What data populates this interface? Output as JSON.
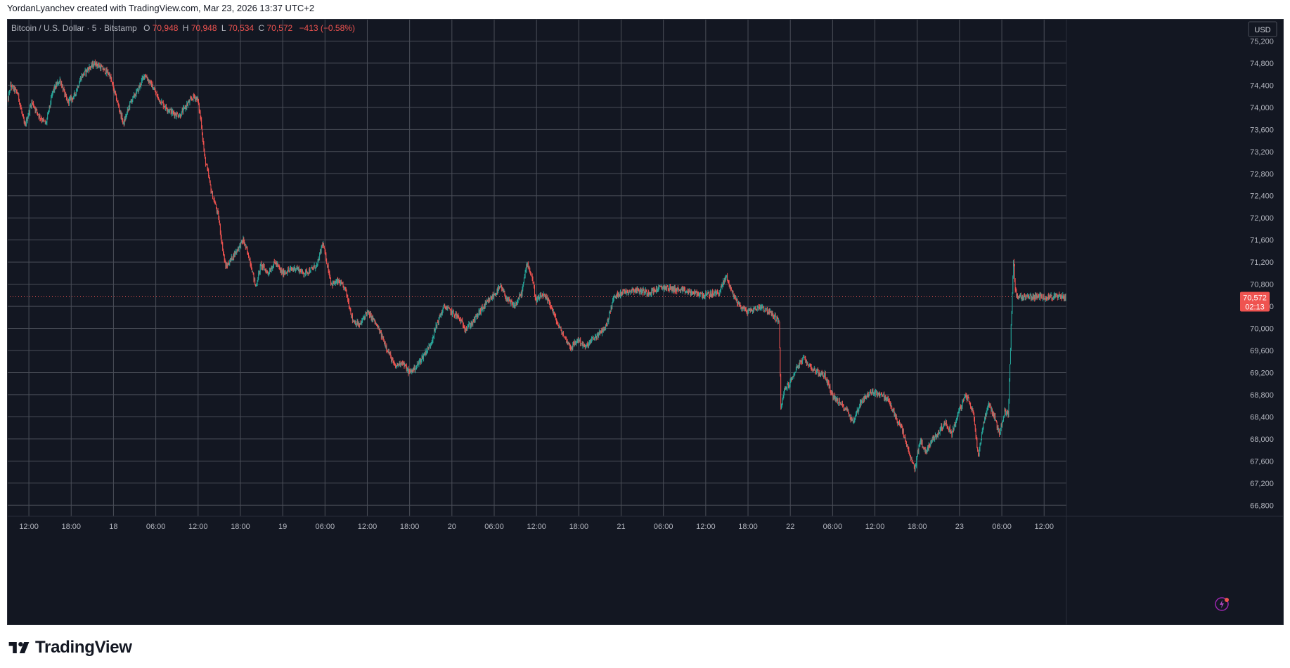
{
  "header": {
    "attribution": "YordanLyanchev created with TradingView.com, Mar 23, 2026 13:37 UTC+2"
  },
  "brand": {
    "name": "TradingView"
  },
  "legend": {
    "symbol": "Bitcoin / U.S. Dollar · 5 · Bitstamp",
    "o_label": "O",
    "o_value": "70,948",
    "h_label": "H",
    "h_value": "70,948",
    "l_label": "L",
    "l_value": "70,534",
    "c_label": "C",
    "c_value": "70,572",
    "change": "−413 (−0.58%)"
  },
  "currency_button": "USD",
  "price_tag": {
    "price": "70,572",
    "countdown": "02:13"
  },
  "colors": {
    "background": "#131722",
    "grid": "#4a4e58",
    "text": "#b2b5be",
    "up": "#26a69a",
    "down": "#ef5350",
    "price_line": "#ef5350"
  },
  "chart_data": {
    "type": "candlestick",
    "title": "Bitcoin / U.S. Dollar · 5 · Bitstamp",
    "ylim": [
      66600,
      75600
    ],
    "y_ticks": [
      66800,
      67200,
      67600,
      68000,
      68400,
      68800,
      69200,
      69600,
      70000,
      70400,
      70800,
      71200,
      71600,
      72000,
      72400,
      72800,
      73200,
      73600,
      74000,
      74400,
      74800,
      75200
    ],
    "y_tick_labels": [
      "66,800",
      "67,200",
      "67,600",
      "68,000",
      "68,400",
      "68,800",
      "69,200",
      "69,600",
      "70,000",
      "70,400",
      "70,800",
      "71,200",
      "71,600",
      "72,000",
      "72,400",
      "72,800",
      "73,200",
      "73,600",
      "74,000",
      "74,400",
      "74,800",
      "75,200"
    ],
    "x_range": [
      "Mar 17 08:54",
      "Mar 23 15:10"
    ],
    "x_ticks": [
      "12:00",
      "18:00",
      "18",
      "06:00",
      "12:00",
      "18:00",
      "19",
      "06:00",
      "12:00",
      "18:00",
      "20",
      "06:00",
      "12:00",
      "18:00",
      "21",
      "06:00",
      "12:00",
      "18:00",
      "22",
      "06:00",
      "12:00",
      "18:00",
      "23",
      "06:00",
      "12:00"
    ],
    "x_tick_hours": [
      12,
      18,
      24,
      30,
      36,
      42,
      48,
      54,
      60,
      66,
      72,
      78,
      84,
      90,
      96,
      102,
      108,
      114,
      120,
      126,
      132,
      138,
      144,
      150,
      156
    ],
    "grid": true,
    "last_price": 70572,
    "price_path": [
      {
        "t": "Mar 17 08:54",
        "p": 74000
      },
      {
        "t": "Mar 17 09:30",
        "p": 74400
      },
      {
        "t": "Mar 17 10:30",
        "p": 74250
      },
      {
        "t": "Mar 17 11:30",
        "p": 73650
      },
      {
        "t": "Mar 17 12:30",
        "p": 74100
      },
      {
        "t": "Mar 17 13:30",
        "p": 73850
      },
      {
        "t": "Mar 17 14:30",
        "p": 73700
      },
      {
        "t": "Mar 17 15:30",
        "p": 74300
      },
      {
        "t": "Mar 17 16:30",
        "p": 74500
      },
      {
        "t": "Mar 17 17:30",
        "p": 74100
      },
      {
        "t": "Mar 17 18:30",
        "p": 74200
      },
      {
        "t": "Mar 17 19:30",
        "p": 74550
      },
      {
        "t": "Mar 17 20:30",
        "p": 74700
      },
      {
        "t": "Mar 17 21:30",
        "p": 74800
      },
      {
        "t": "Mar 17 22:30",
        "p": 74700
      },
      {
        "t": "Mar 17 23:30",
        "p": 74600
      },
      {
        "t": "Mar 18 00:30",
        "p": 74150
      },
      {
        "t": "Mar 18 01:30",
        "p": 73700
      },
      {
        "t": "Mar 18 02:30",
        "p": 74100
      },
      {
        "t": "Mar 18 03:30",
        "p": 74300
      },
      {
        "t": "Mar 18 04:30",
        "p": 74600
      },
      {
        "t": "Mar 18 05:30",
        "p": 74400
      },
      {
        "t": "Mar 18 06:30",
        "p": 74150
      },
      {
        "t": "Mar 18 07:30",
        "p": 74000
      },
      {
        "t": "Mar 18 08:30",
        "p": 73900
      },
      {
        "t": "Mar 18 09:30",
        "p": 73850
      },
      {
        "t": "Mar 18 10:30",
        "p": 74050
      },
      {
        "t": "Mar 18 11:30",
        "p": 74200
      },
      {
        "t": "Mar 18 12:00",
        "p": 74150
      },
      {
        "t": "Mar 18 12:30",
        "p": 73750
      },
      {
        "t": "Mar 18 13:00",
        "p": 73100
      },
      {
        "t": "Mar 18 13:30",
        "p": 72800
      },
      {
        "t": "Mar 18 14:00",
        "p": 72450
      },
      {
        "t": "Mar 18 14:30",
        "p": 72250
      },
      {
        "t": "Mar 18 15:00",
        "p": 72000
      },
      {
        "t": "Mar 18 15:30",
        "p": 71500
      },
      {
        "t": "Mar 18 16:00",
        "p": 71100
      },
      {
        "t": "Mar 18 16:45",
        "p": 71250
      },
      {
        "t": "Mar 18 17:30",
        "p": 71400
      },
      {
        "t": "Mar 18 18:30",
        "p": 71600
      },
      {
        "t": "Mar 18 19:30",
        "p": 71200
      },
      {
        "t": "Mar 18 20:15",
        "p": 70750
      },
      {
        "t": "Mar 18 21:00",
        "p": 71150
      },
      {
        "t": "Mar 18 22:00",
        "p": 71000
      },
      {
        "t": "Mar 18 23:00",
        "p": 71200
      },
      {
        "t": "Mar 19 00:00",
        "p": 71000
      },
      {
        "t": "Mar 19 01:00",
        "p": 71050
      },
      {
        "t": "Mar 19 02:00",
        "p": 71100
      },
      {
        "t": "Mar 19 03:00",
        "p": 71000
      },
      {
        "t": "Mar 19 04:00",
        "p": 71050
      },
      {
        "t": "Mar 19 05:00",
        "p": 71150
      },
      {
        "t": "Mar 19 05:45",
        "p": 71550
      },
      {
        "t": "Mar 19 06:30",
        "p": 71100
      },
      {
        "t": "Mar 19 07:00",
        "p": 70800
      },
      {
        "t": "Mar 19 08:00",
        "p": 70850
      },
      {
        "t": "Mar 19 09:00",
        "p": 70700
      },
      {
        "t": "Mar 19 10:00",
        "p": 70150
      },
      {
        "t": "Mar 19 11:00",
        "p": 70050
      },
      {
        "t": "Mar 19 12:00",
        "p": 70300
      },
      {
        "t": "Mar 19 13:00",
        "p": 70150
      },
      {
        "t": "Mar 19 14:00",
        "p": 69900
      },
      {
        "t": "Mar 19 15:00",
        "p": 69600
      },
      {
        "t": "Mar 19 16:00",
        "p": 69300
      },
      {
        "t": "Mar 19 17:00",
        "p": 69400
      },
      {
        "t": "Mar 19 18:00",
        "p": 69200
      },
      {
        "t": "Mar 19 19:00",
        "p": 69300
      },
      {
        "t": "Mar 19 20:00",
        "p": 69500
      },
      {
        "t": "Mar 19 21:00",
        "p": 69700
      },
      {
        "t": "Mar 19 22:00",
        "p": 70100
      },
      {
        "t": "Mar 19 23:00",
        "p": 70400
      },
      {
        "t": "Mar 20 00:00",
        "p": 70300
      },
      {
        "t": "Mar 20 01:00",
        "p": 70200
      },
      {
        "t": "Mar 20 02:00",
        "p": 70000
      },
      {
        "t": "Mar 20 03:00",
        "p": 70100
      },
      {
        "t": "Mar 20 04:00",
        "p": 70300
      },
      {
        "t": "Mar 20 05:00",
        "p": 70450
      },
      {
        "t": "Mar 20 06:00",
        "p": 70600
      },
      {
        "t": "Mar 20 07:00",
        "p": 70750
      },
      {
        "t": "Mar 20 08:00",
        "p": 70500
      },
      {
        "t": "Mar 20 09:00",
        "p": 70400
      },
      {
        "t": "Mar 20 10:00",
        "p": 70650
      },
      {
        "t": "Mar 20 10:45",
        "p": 71200
      },
      {
        "t": "Mar 20 11:30",
        "p": 70900
      },
      {
        "t": "Mar 20 12:00",
        "p": 70500
      },
      {
        "t": "Mar 20 13:00",
        "p": 70600
      },
      {
        "t": "Mar 20 14:00",
        "p": 70450
      },
      {
        "t": "Mar 20 15:00",
        "p": 70100
      },
      {
        "t": "Mar 20 16:00",
        "p": 69850
      },
      {
        "t": "Mar 20 17:00",
        "p": 69650
      },
      {
        "t": "Mar 20 18:00",
        "p": 69800
      },
      {
        "t": "Mar 20 19:00",
        "p": 69650
      },
      {
        "t": "Mar 20 20:00",
        "p": 69800
      },
      {
        "t": "Mar 20 21:00",
        "p": 69900
      },
      {
        "t": "Mar 20 22:00",
        "p": 70050
      },
      {
        "t": "Mar 20 23:00",
        "p": 70550
      },
      {
        "t": "Mar 21 00:00",
        "p": 70650
      },
      {
        "t": "Mar 21 02:00",
        "p": 70700
      },
      {
        "t": "Mar 21 04:00",
        "p": 70650
      },
      {
        "t": "Mar 21 06:00",
        "p": 70750
      },
      {
        "t": "Mar 21 08:00",
        "p": 70700
      },
      {
        "t": "Mar 21 10:00",
        "p": 70650
      },
      {
        "t": "Mar 21 12:00",
        "p": 70600
      },
      {
        "t": "Mar 21 14:00",
        "p": 70650
      },
      {
        "t": "Mar 21 15:00",
        "p": 70950
      },
      {
        "t": "Mar 21 16:00",
        "p": 70600
      },
      {
        "t": "Mar 21 17:00",
        "p": 70400
      },
      {
        "t": "Mar 21 18:00",
        "p": 70300
      },
      {
        "t": "Mar 21 19:00",
        "p": 70350
      },
      {
        "t": "Mar 21 20:00",
        "p": 70400
      },
      {
        "t": "Mar 21 21:00",
        "p": 70300
      },
      {
        "t": "Mar 21 22:00",
        "p": 70200
      },
      {
        "t": "Mar 21 22:30",
        "p": 70100
      },
      {
        "t": "Mar 21 22:45",
        "p": 68500
      },
      {
        "t": "Mar 21 23:15",
        "p": 68900
      },
      {
        "t": "Mar 22 00:00",
        "p": 69000
      },
      {
        "t": "Mar 22 01:00",
        "p": 69300
      },
      {
        "t": "Mar 22 02:00",
        "p": 69450
      },
      {
        "t": "Mar 22 03:00",
        "p": 69300
      },
      {
        "t": "Mar 22 04:00",
        "p": 69200
      },
      {
        "t": "Mar 22 05:00",
        "p": 69150
      },
      {
        "t": "Mar 22 06:00",
        "p": 68800
      },
      {
        "t": "Mar 22 07:00",
        "p": 68650
      },
      {
        "t": "Mar 22 08:00",
        "p": 68550
      },
      {
        "t": "Mar 22 09:00",
        "p": 68300
      },
      {
        "t": "Mar 22 10:00",
        "p": 68650
      },
      {
        "t": "Mar 22 11:00",
        "p": 68800
      },
      {
        "t": "Mar 22 12:00",
        "p": 68850
      },
      {
        "t": "Mar 22 13:00",
        "p": 68800
      },
      {
        "t": "Mar 22 14:00",
        "p": 68700
      },
      {
        "t": "Mar 22 15:00",
        "p": 68400
      },
      {
        "t": "Mar 22 16:00",
        "p": 68150
      },
      {
        "t": "Mar 22 17:00",
        "p": 67700
      },
      {
        "t": "Mar 22 17:45",
        "p": 67450
      },
      {
        "t": "Mar 22 18:30",
        "p": 68000
      },
      {
        "t": "Mar 22 19:15",
        "p": 67750
      },
      {
        "t": "Mar 22 20:00",
        "p": 67950
      },
      {
        "t": "Mar 22 21:00",
        "p": 68100
      },
      {
        "t": "Mar 22 22:00",
        "p": 68300
      },
      {
        "t": "Mar 22 23:00",
        "p": 68100
      },
      {
        "t": "Mar 23 00:00",
        "p": 68500
      },
      {
        "t": "Mar 23 01:00",
        "p": 68800
      },
      {
        "t": "Mar 23 02:00",
        "p": 68500
      },
      {
        "t": "Mar 23 02:45",
        "p": 67700
      },
      {
        "t": "Mar 23 03:30",
        "p": 68300
      },
      {
        "t": "Mar 23 04:15",
        "p": 68650
      },
      {
        "t": "Mar 23 05:00",
        "p": 68400
      },
      {
        "t": "Mar 23 05:45",
        "p": 68100
      },
      {
        "t": "Mar 23 06:30",
        "p": 68500
      },
      {
        "t": "Mar 23 07:00",
        "p": 68450
      },
      {
        "t": "Mar 23 07:30",
        "p": 70400
      },
      {
        "t": "Mar 23 07:45",
        "p": 71250
      },
      {
        "t": "Mar 23 08:00",
        "p": 70700
      },
      {
        "t": "Mar 23 08:10",
        "p": 70572
      }
    ]
  }
}
